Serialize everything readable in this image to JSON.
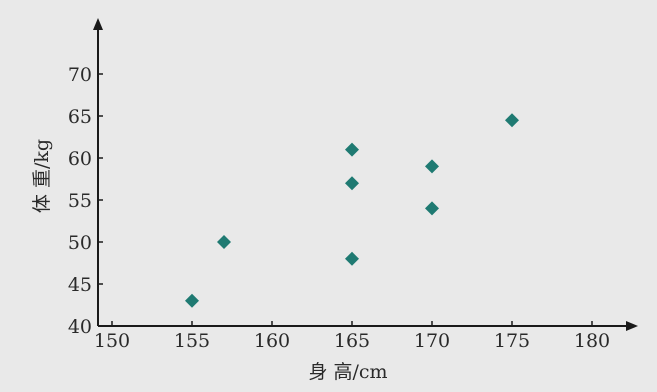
{
  "chart_data": {
    "type": "scatter",
    "xlabel": "身 高/cm",
    "ylabel": "体 重/kg",
    "xlim": [
      150,
      180
    ],
    "ylim": [
      40,
      70
    ],
    "x_ticks": [
      150,
      155,
      160,
      165,
      170,
      175,
      180
    ],
    "y_ticks": [
      40,
      45,
      50,
      55,
      60,
      65,
      70
    ],
    "grid": false,
    "legend": "none",
    "marker": "diamond",
    "series": [
      {
        "points": [
          {
            "x": 155,
            "y": 43
          },
          {
            "x": 157,
            "y": 50
          },
          {
            "x": 165,
            "y": 48
          },
          {
            "x": 165,
            "y": 57
          },
          {
            "x": 165,
            "y": 61
          },
          {
            "x": 170,
            "y": 54
          },
          {
            "x": 170,
            "y": 59
          },
          {
            "x": 175,
            "y": 64.5
          }
        ]
      }
    ],
    "colors": {
      "marker": "#1f7a72",
      "axis": "#1a1a1a",
      "background": "#e9e9e9"
    }
  }
}
